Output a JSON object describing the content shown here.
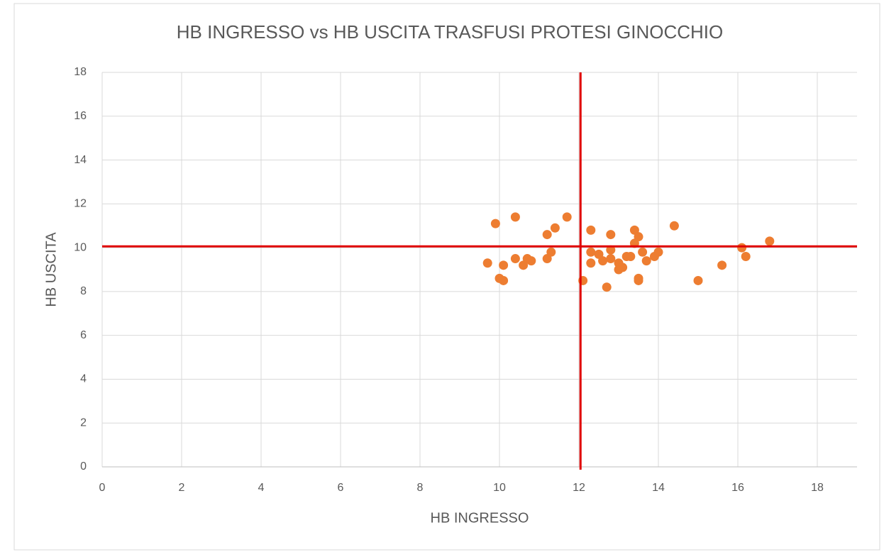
{
  "chart_data": {
    "type": "scatter",
    "title": "HB INGRESSO vs HB USCITA TRASFUSI PROTESI GINOCCHIO",
    "x_label": "HB INGRESSO",
    "y_label": "HB USCITA",
    "series": [
      {
        "color": "#ed7d31",
        "x": [
          9.7,
          9.9,
          10.0,
          10.1,
          10.1,
          10.4,
          10.4,
          10.6,
          10.7,
          10.8,
          11.2,
          11.2,
          11.3,
          11.4,
          11.7,
          12.1,
          12.3,
          12.3,
          12.3,
          12.5,
          12.6,
          12.7,
          12.8,
          12.8,
          12.8,
          13.0,
          13.0,
          13.1,
          13.2,
          13.3,
          13.4,
          13.4,
          13.5,
          13.5,
          13.5,
          13.6,
          13.7,
          13.9,
          14.0,
          14.4,
          15.0,
          15.6,
          16.1,
          16.2,
          16.8
        ],
        "values": [
          9.3,
          11.1,
          8.6,
          9.2,
          8.5,
          11.4,
          9.5,
          9.2,
          9.5,
          9.4,
          10.6,
          9.5,
          9.8,
          10.9,
          11.4,
          8.5,
          10.8,
          9.8,
          9.3,
          9.7,
          9.4,
          8.2,
          10.6,
          9.9,
          9.5,
          9.3,
          9.0,
          9.1,
          9.6,
          9.6,
          10.8,
          10.2,
          10.5,
          8.6,
          8.5,
          9.8,
          9.4,
          9.6,
          9.8,
          11.0,
          8.5,
          9.2,
          10.0,
          9.6,
          10.3
        ]
      }
    ],
    "vline": 12.04,
    "hline": 10.06,
    "line_color": "#e00000",
    "xlim": [
      0,
      19
    ],
    "ylim": [
      0,
      18
    ],
    "xticks": [
      0,
      2,
      4,
      6,
      8,
      10,
      12,
      14,
      16,
      18
    ],
    "yticks": [
      0,
      2,
      4,
      6,
      8,
      10,
      12,
      14,
      16,
      18
    ],
    "grid": true
  }
}
